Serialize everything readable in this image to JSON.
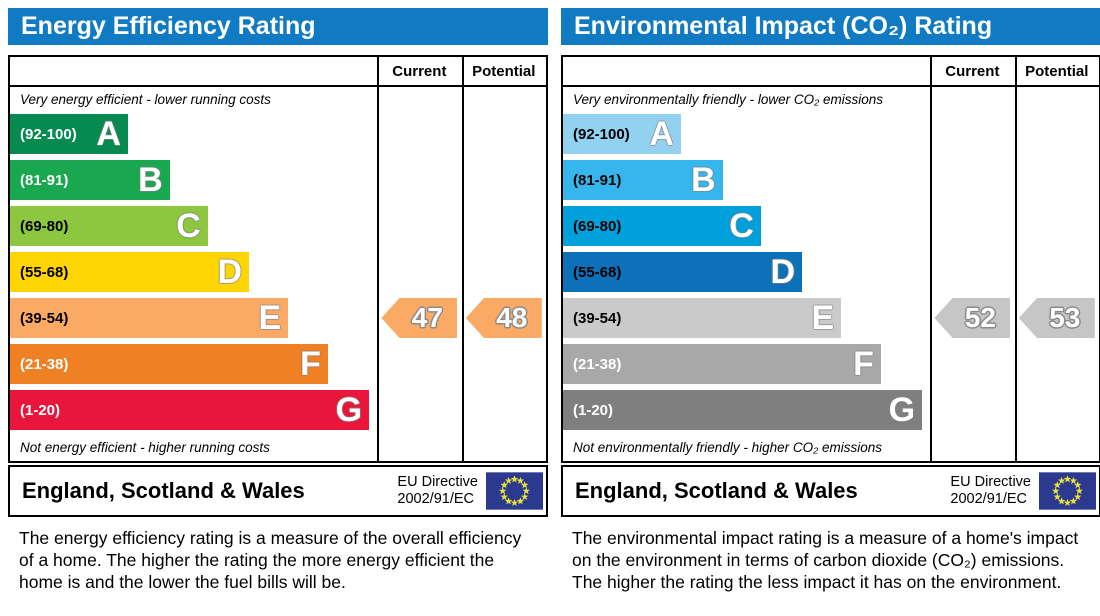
{
  "chart_data": [
    {
      "type": "bar",
      "chart_kind": "epc-rating",
      "title": "Energy Efficiency Rating",
      "header_color": "#107ac2",
      "columns": [
        "Current",
        "Potential"
      ],
      "top_caption": "Very energy efficient - lower running costs",
      "bottom_caption": "Not energy efficient - higher running costs",
      "bands": [
        {
          "label": "A",
          "range": "(92-100)",
          "range_values": [
            92,
            100
          ],
          "color": "#068a50",
          "label_color": "#ffffff",
          "width_pct": 22
        },
        {
          "label": "B",
          "range": "(81-91)",
          "range_values": [
            81,
            91
          ],
          "color": "#19a850",
          "label_color": "#ffffff",
          "width_pct": 29.8
        },
        {
          "label": "C",
          "range": "(69-80)",
          "range_values": [
            69,
            80
          ],
          "color": "#8dc63f",
          "label_color": "#000000",
          "width_pct": 36.9
        },
        {
          "label": "D",
          "range": "(55-68)",
          "range_values": [
            55,
            68
          ],
          "color": "#fed502",
          "label_color": "#000000",
          "width_pct": 44.6
        },
        {
          "label": "E",
          "range": "(39-54)",
          "range_values": [
            39,
            54
          ],
          "color": "#fbaa65",
          "label_color": "#000000",
          "width_pct": 51.9
        },
        {
          "label": "F",
          "range": "(21-38)",
          "range_values": [
            21,
            38
          ],
          "color": "#ef8023",
          "label_color": "#ffffff",
          "width_pct": 59.3
        },
        {
          "label": "G",
          "range": "(1-20)",
          "range_values": [
            1,
            20
          ],
          "color": "#e9153b",
          "label_color": "#ffffff",
          "width_pct": 67
        }
      ],
      "current": {
        "value": 47,
        "band": "E",
        "color": "#fbaa65"
      },
      "potential": {
        "value": 48,
        "band": "E",
        "color": "#fbaa65"
      },
      "footer": {
        "region": "England, Scotland & Wales",
        "directive_line1": "EU Directive",
        "directive_line2": "2002/91/EC",
        "flag_field": "#2b3a8f",
        "flag_stars": "#e8e33c"
      },
      "description": "The energy efficiency rating is a measure of the overall efficiency of a home. The higher the rating the more energy efficient the home is and the lower the fuel bills will be."
    },
    {
      "type": "bar",
      "chart_kind": "epc-rating",
      "title": "Environmental Impact (CO₂) Rating",
      "header_color": "#107ac2",
      "columns": [
        "Current",
        "Potential"
      ],
      "top_caption": "Very environmentally friendly - lower CO₂ emissions",
      "bottom_caption": "Not environmentally friendly - higher CO₂ emissions",
      "bands": [
        {
          "label": "A",
          "range": "(92-100)",
          "range_values": [
            92,
            100
          ],
          "color": "#92d1ef",
          "label_color": "#000000",
          "width_pct": 22
        },
        {
          "label": "B",
          "range": "(81-91)",
          "range_values": [
            81,
            91
          ],
          "color": "#35b6ec",
          "label_color": "#000000",
          "width_pct": 29.8
        },
        {
          "label": "C",
          "range": "(69-80)",
          "range_values": [
            69,
            80
          ],
          "color": "#00a0dc",
          "label_color": "#000000",
          "width_pct": 36.9
        },
        {
          "label": "D",
          "range": "(55-68)",
          "range_values": [
            55,
            68
          ],
          "color": "#0d71b9",
          "label_color": "#000000",
          "width_pct": 44.6
        },
        {
          "label": "E",
          "range": "(39-54)",
          "range_values": [
            39,
            54
          ],
          "color": "#cacaca",
          "label_color": "#000000",
          "width_pct": 51.9
        },
        {
          "label": "F",
          "range": "(21-38)",
          "range_values": [
            21,
            38
          ],
          "color": "#a8a8a8",
          "label_color": "#ffffff",
          "width_pct": 59.3
        },
        {
          "label": "G",
          "range": "(1-20)",
          "range_values": [
            1,
            20
          ],
          "color": "#7f7f7f",
          "label_color": "#ffffff",
          "width_pct": 67
        }
      ],
      "current": {
        "value": 52,
        "band": "E",
        "color": "#c6c6c6"
      },
      "potential": {
        "value": 53,
        "band": "E",
        "color": "#c6c6c6"
      },
      "footer": {
        "region": "England, Scotland & Wales",
        "directive_line1": "EU Directive",
        "directive_line2": "2002/91/EC",
        "flag_field": "#2b3a8f",
        "flag_stars": "#e8e33c"
      },
      "description": "The environmental impact rating is a measure of a home's impact on the environment in terms of carbon dioxide (CO₂) emissions. The higher the rating the less impact it has on the environment."
    }
  ]
}
